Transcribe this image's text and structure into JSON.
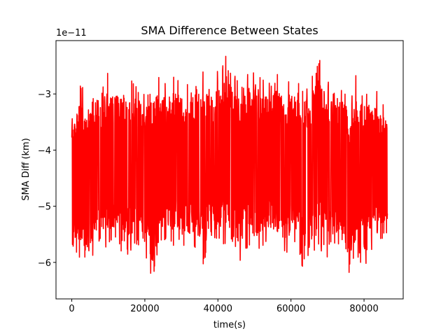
{
  "chart_data": {
    "type": "line",
    "title": "SMA Difference Between States",
    "xlabel": "time(s)",
    "ylabel": "SMA Diff (km)",
    "y_offset_label": "1e−11",
    "xlim": [
      -4320,
      90720
    ],
    "ylim": [
      -6.65e-11,
      -2.05e-11
    ],
    "x_ticks": [
      0,
      20000,
      40000,
      60000,
      80000
    ],
    "x_tick_labels": [
      "0",
      "20000",
      "40000",
      "60000",
      "80000"
    ],
    "y_ticks": [
      -6e-11,
      -5e-11,
      -4e-11,
      -3e-11
    ],
    "y_tick_labels": [
      "−6",
      "−5",
      "−4",
      "−3"
    ],
    "grid": false,
    "series": [
      {
        "color": "#ff0000",
        "x": [
          0,
          2000,
          4000,
          6000,
          8000,
          10000,
          12000,
          14000,
          16000,
          18000,
          20000,
          22000,
          24000,
          26000,
          28000,
          30000,
          32000,
          34000,
          36000,
          38000,
          40000,
          42000,
          44000,
          46000,
          48000,
          50000,
          52000,
          54000,
          56000,
          58000,
          60000,
          62000,
          64000,
          66000,
          68000,
          70000,
          72000,
          74000,
          76000,
          78000,
          80000,
          82000,
          84000,
          86400
        ],
        "y_max": [
          -3.1e-11,
          -2.65e-11,
          -2.9e-11,
          -3e-11,
          -2.85e-11,
          -2.6e-11,
          -2.75e-11,
          -2.6e-11,
          -2.7e-11,
          -2.8e-11,
          -2.95e-11,
          -2.75e-11,
          -2.6e-11,
          -2.8e-11,
          -2.6e-11,
          -2.75e-11,
          -2.6e-11,
          -2.7e-11,
          -2.6e-11,
          -2.75e-11,
          -2.55e-11,
          -2.3e-11,
          -2.6e-11,
          -2.75e-11,
          -2.6e-11,
          -2.45e-11,
          -2.7e-11,
          -2.75e-11,
          -2.6e-11,
          -2.75e-11,
          -2.65e-11,
          -2.8e-11,
          -2.7e-11,
          -2.6e-11,
          -2.3e-11,
          -2.8e-11,
          -2.65e-11,
          -2.8e-11,
          -2.9e-11,
          -2.6e-11,
          -2.9e-11,
          -2.85e-11,
          -2.9e-11,
          -3.3e-11
        ],
        "y_min": [
          -6.15e-11,
          -5.9e-11,
          -6.35e-11,
          -5.85e-11,
          -5.75e-11,
          -5.8e-11,
          -5.7e-11,
          -5.85e-11,
          -5.9e-11,
          -5.7e-11,
          -5.8e-11,
          -6.45e-11,
          -5.75e-11,
          -5.6e-11,
          -5.75e-11,
          -5.7e-11,
          -5.85e-11,
          -5.75e-11,
          -6.2e-11,
          -5.6e-11,
          -5.8e-11,
          -5.7e-11,
          -5.85e-11,
          -6e-11,
          -5.75e-11,
          -5.9e-11,
          -5.8e-11,
          -5.7e-11,
          -5.75e-11,
          -5.95e-11,
          -5.8e-11,
          -5.7e-11,
          -6.45e-11,
          -5.9e-11,
          -5.8e-11,
          -6.05e-11,
          -5.85e-11,
          -5.7e-11,
          -6.45e-11,
          -5.9e-11,
          -6.1e-11,
          -5.85e-11,
          -5.8e-11,
          -5.5e-11
        ]
      }
    ]
  }
}
